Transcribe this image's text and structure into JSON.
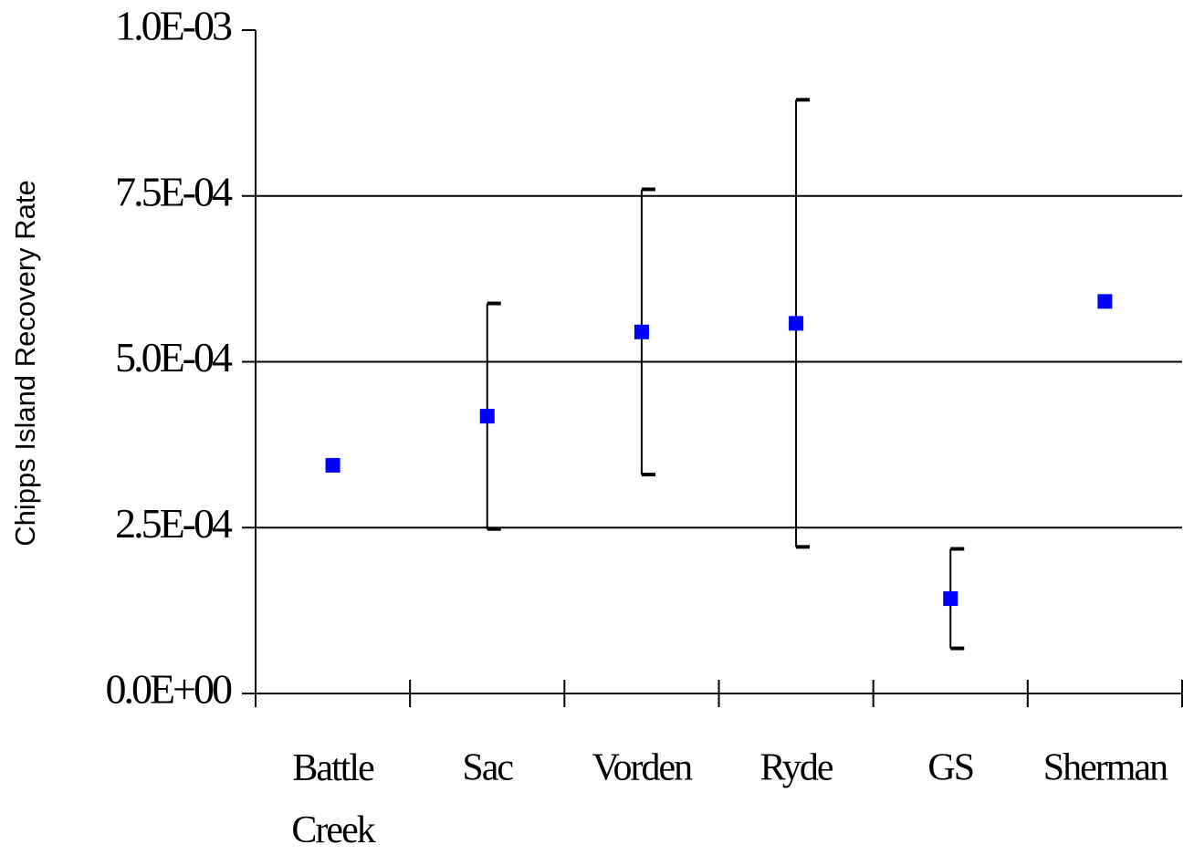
{
  "chart_data": {
    "type": "errorbar_scatter",
    "y_label": "Chipps Island Recovery Rate",
    "categories": [
      "Battle Creek",
      "Sac",
      "Vorden",
      "Ryde",
      "GS",
      "Sherman"
    ],
    "series": [
      {
        "name": null,
        "color": "#0000ff",
        "values": [
          0.000344,
          0.000418,
          0.000545,
          0.000558,
          0.000143,
          0.000591
        ],
        "errors": [
          null,
          0.00017,
          0.000215,
          0.000337,
          7.5e-05,
          null
        ]
      }
    ],
    "ylim": [
      0,
      0.001
    ],
    "yticks": [
      {
        "value": 0,
        "label": "0.0E+00"
      },
      {
        "value": 0.00025,
        "label": "2.5E-04"
      },
      {
        "value": 0.0005,
        "label": "5.0E-04"
      },
      {
        "value": 0.00075,
        "label": "7.5E-04"
      },
      {
        "value": 0.001,
        "label": "1.0E-03"
      }
    ],
    "grid": true
  }
}
